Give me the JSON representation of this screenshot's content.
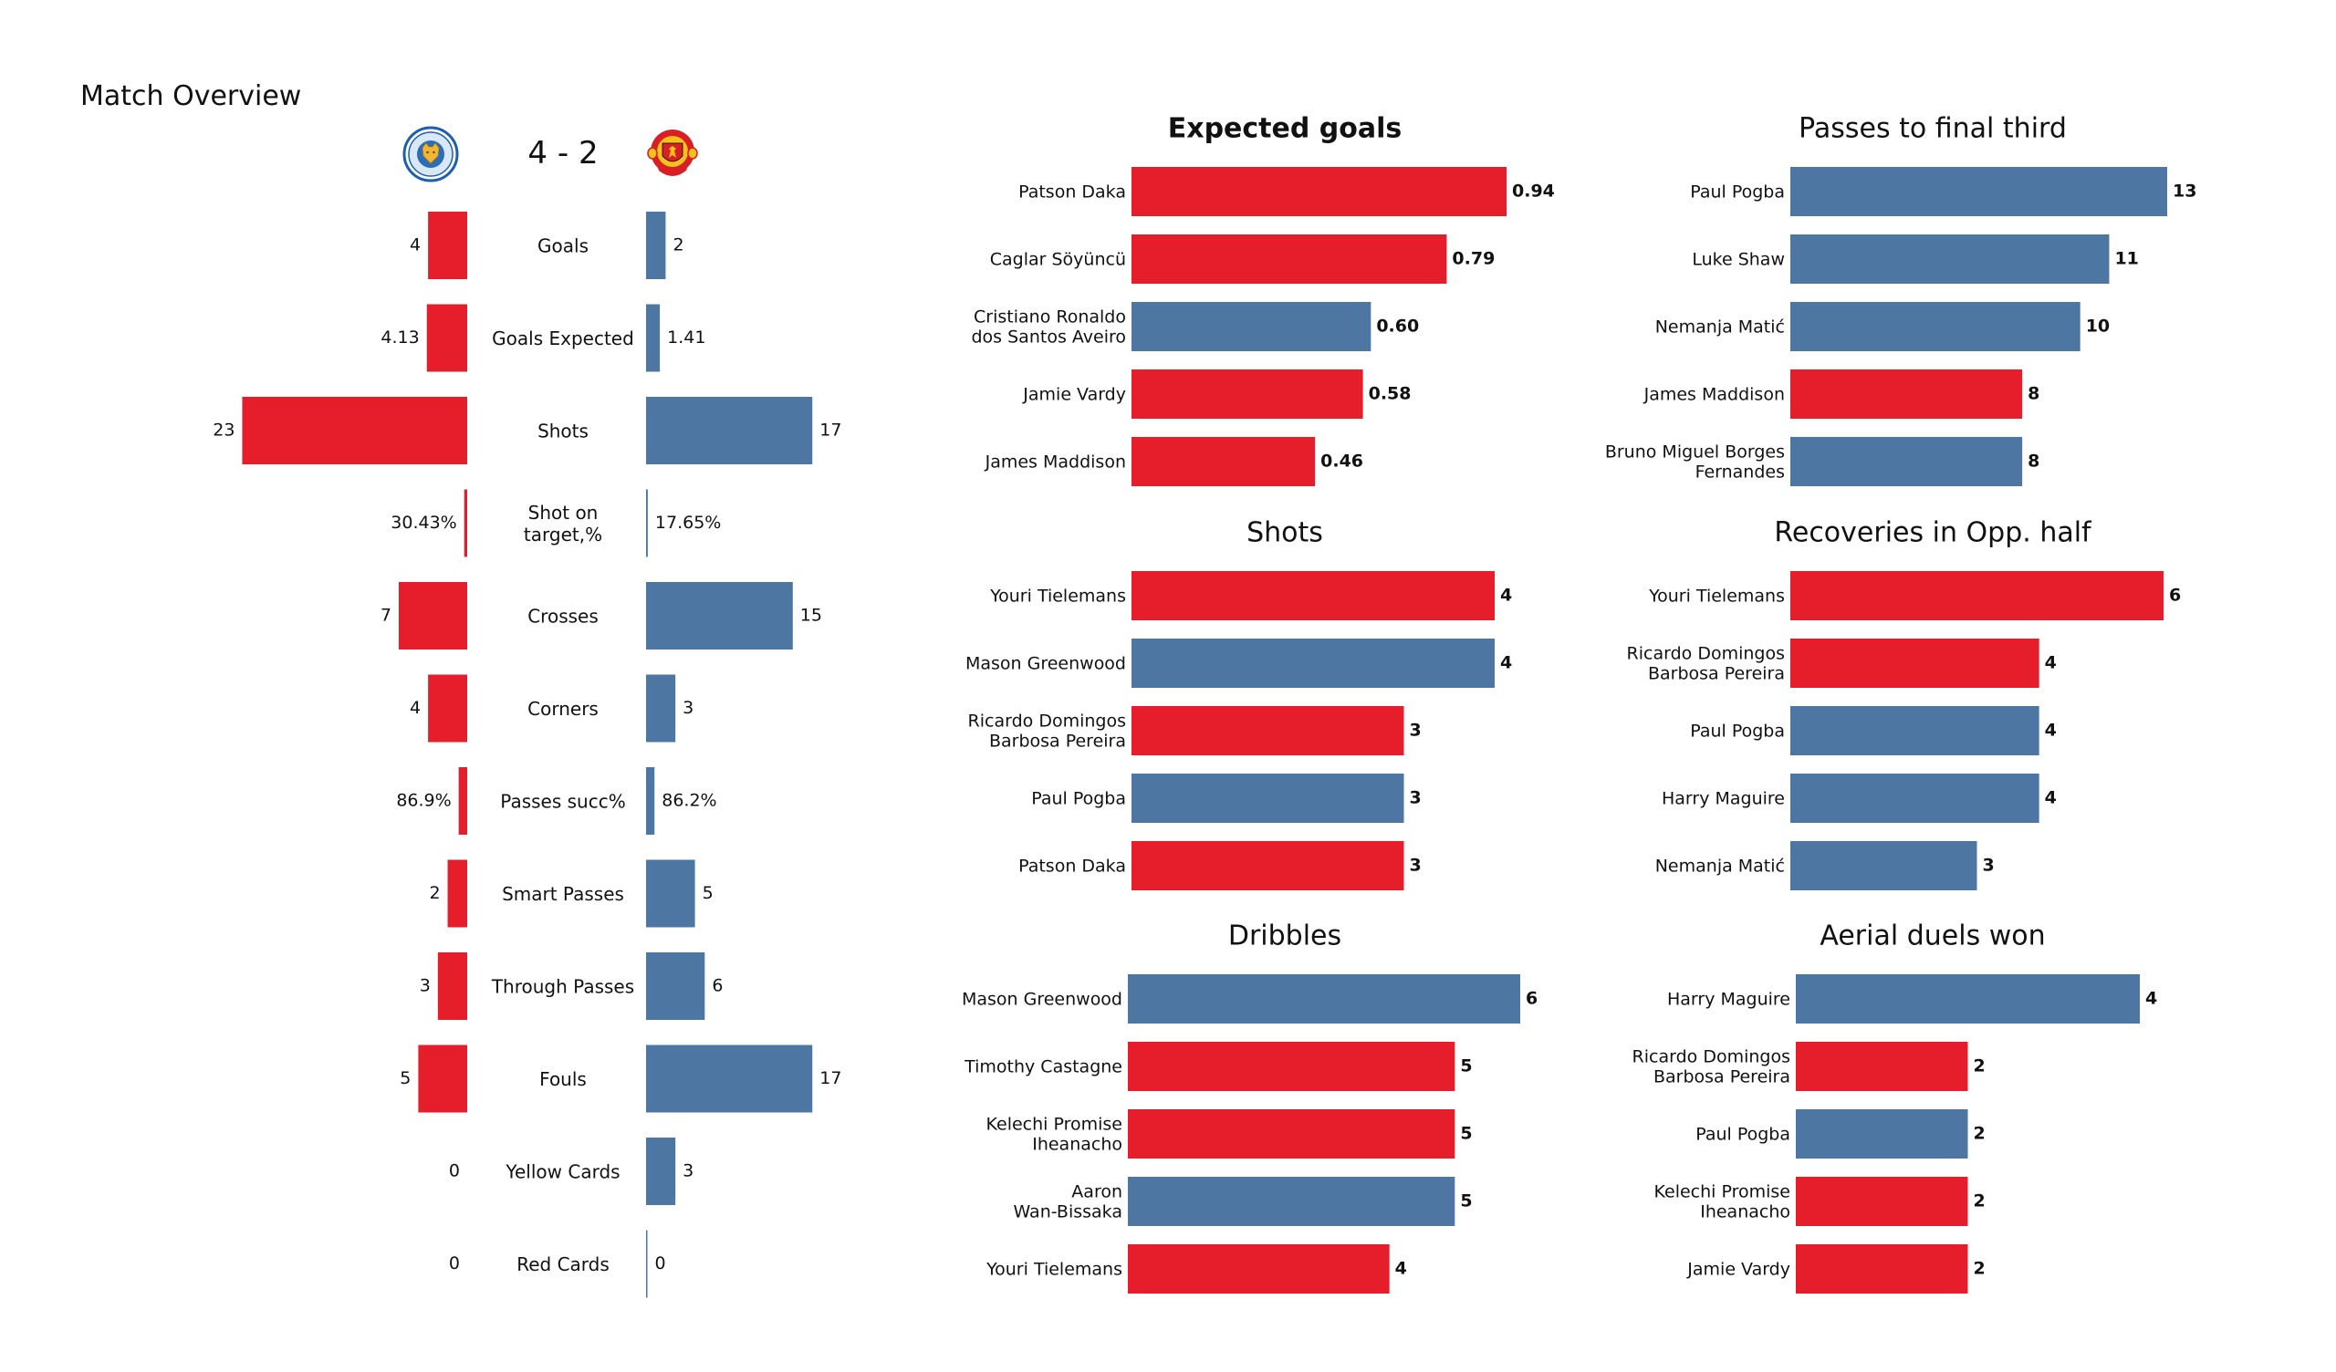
{
  "page": {
    "title": "Match Overview",
    "score": "4 - 2",
    "home_team": {
      "name": "Leicester City",
      "logo_icon": "leicester-city-crest-icon",
      "color": "#e61e2b"
    },
    "away_team": {
      "name": "Manchester United",
      "logo_icon": "manchester-united-crest-icon",
      "color": "#4e76a3"
    }
  },
  "chart_data": [
    {
      "type": "bar",
      "orientation": "horizontal-diverging",
      "title": "Match Overview",
      "categories": [
        "Goals",
        "Goals Expected",
        "Shots",
        "Shot on\ntarget,%",
        "Crosses",
        "Corners",
        "Passes succ%",
        "Smart Passes",
        "Through Passes",
        "Fouls",
        "Yellow Cards",
        "Red Cards"
      ],
      "series": [
        {
          "name": "Leicester City",
          "color": "#e61e2b",
          "values": [
            4,
            4.13,
            23,
            0.3043,
            7,
            4,
            0.869,
            2,
            3,
            5,
            0,
            0
          ],
          "labels": [
            "4",
            "4.13",
            "23",
            "30.43%",
            "7",
            "4",
            "86.9%",
            "2",
            "3",
            "5",
            "0",
            "0"
          ]
        },
        {
          "name": "Manchester United",
          "color": "#4e76a3",
          "values": [
            2,
            1.41,
            17,
            0.1765,
            15,
            3,
            0.862,
            5,
            6,
            17,
            3,
            0
          ],
          "labels": [
            "2",
            "1.41",
            "17",
            "17.65%",
            "15",
            "3",
            "86.2%",
            "5",
            "6",
            "17",
            "3",
            "0"
          ]
        }
      ],
      "xlabel": "",
      "ylabel": "",
      "grid": false,
      "legend": "none"
    },
    {
      "type": "bar",
      "orientation": "horizontal",
      "title": "Expected goals",
      "title_bold": true,
      "categories": [
        "Patson Daka",
        "Caglar Söyüncü",
        "Cristiano Ronaldo\ndos Santos Aveiro",
        "Jamie Vardy",
        "James Maddison"
      ],
      "values": [
        0.94,
        0.79,
        0.6,
        0.58,
        0.46
      ],
      "labels": [
        "0.94",
        "0.79",
        "0.60",
        "0.58",
        "0.46"
      ],
      "teams": [
        "home",
        "home",
        "away",
        "home",
        "home"
      ],
      "xlim": [
        0,
        0.94
      ],
      "grid": false,
      "legend": "none"
    },
    {
      "type": "bar",
      "orientation": "horizontal",
      "title": "Passes to final third",
      "title_bold": false,
      "categories": [
        "Paul Pogba",
        "Luke Shaw",
        "Nemanja Matić",
        "James Maddison",
        "Bruno Miguel Borges\nFernandes"
      ],
      "values": [
        13,
        11,
        10,
        8,
        8
      ],
      "labels": [
        "13",
        "11",
        "10",
        "8",
        "8"
      ],
      "teams": [
        "away",
        "away",
        "away",
        "home",
        "away"
      ],
      "xlim": [
        0,
        13
      ],
      "grid": false,
      "legend": "none"
    },
    {
      "type": "bar",
      "orientation": "horizontal",
      "title": "Shots",
      "title_bold": false,
      "categories": [
        "Youri Tielemans",
        "Mason Greenwood",
        "Ricardo Domingos\nBarbosa Pereira",
        "Paul Pogba",
        "Patson Daka"
      ],
      "values": [
        4,
        4,
        3,
        3,
        3
      ],
      "labels": [
        "4",
        "4",
        "3",
        "3",
        "3"
      ],
      "teams": [
        "home",
        "away",
        "home",
        "away",
        "home"
      ],
      "xlim": [
        0,
        4
      ],
      "grid": false,
      "legend": "none"
    },
    {
      "type": "bar",
      "orientation": "horizontal",
      "title": "Recoveries in Opp. half",
      "title_bold": false,
      "categories": [
        "Youri Tielemans",
        "Ricardo Domingos\nBarbosa Pereira",
        "Paul Pogba",
        "Harry  Maguire",
        "Nemanja Matić"
      ],
      "values": [
        6,
        4,
        4,
        4,
        3
      ],
      "labels": [
        "6",
        "4",
        "4",
        "4",
        "3"
      ],
      "teams": [
        "home",
        "home",
        "away",
        "away",
        "away"
      ],
      "xlim": [
        0,
        6
      ],
      "grid": false,
      "legend": "none"
    },
    {
      "type": "bar",
      "orientation": "horizontal",
      "title": "Dribbles",
      "title_bold": false,
      "categories": [
        "Mason Greenwood",
        "Timothy Castagne",
        "Kelechi Promise\nIheanacho",
        "Aaron\nWan-Bissaka",
        "Youri Tielemans"
      ],
      "values": [
        6,
        5,
        5,
        5,
        4
      ],
      "labels": [
        "6",
        "5",
        "5",
        "5",
        "4"
      ],
      "teams": [
        "away",
        "home",
        "home",
        "away",
        "home"
      ],
      "xlim": [
        0,
        6
      ],
      "grid": false,
      "legend": "none"
    },
    {
      "type": "bar",
      "orientation": "horizontal",
      "title": "Aerial duels won",
      "title_bold": false,
      "categories": [
        "Harry  Maguire",
        "Ricardo Domingos\nBarbosa Pereira",
        "Paul Pogba",
        "Kelechi Promise\nIheanacho",
        "Jamie Vardy"
      ],
      "values": [
        4,
        2,
        2,
        2,
        2
      ],
      "labels": [
        "4",
        "2",
        "2",
        "2",
        "2"
      ],
      "teams": [
        "away",
        "home",
        "away",
        "home",
        "home"
      ],
      "xlim": [
        0,
        4
      ],
      "grid": false,
      "legend": "none"
    }
  ]
}
